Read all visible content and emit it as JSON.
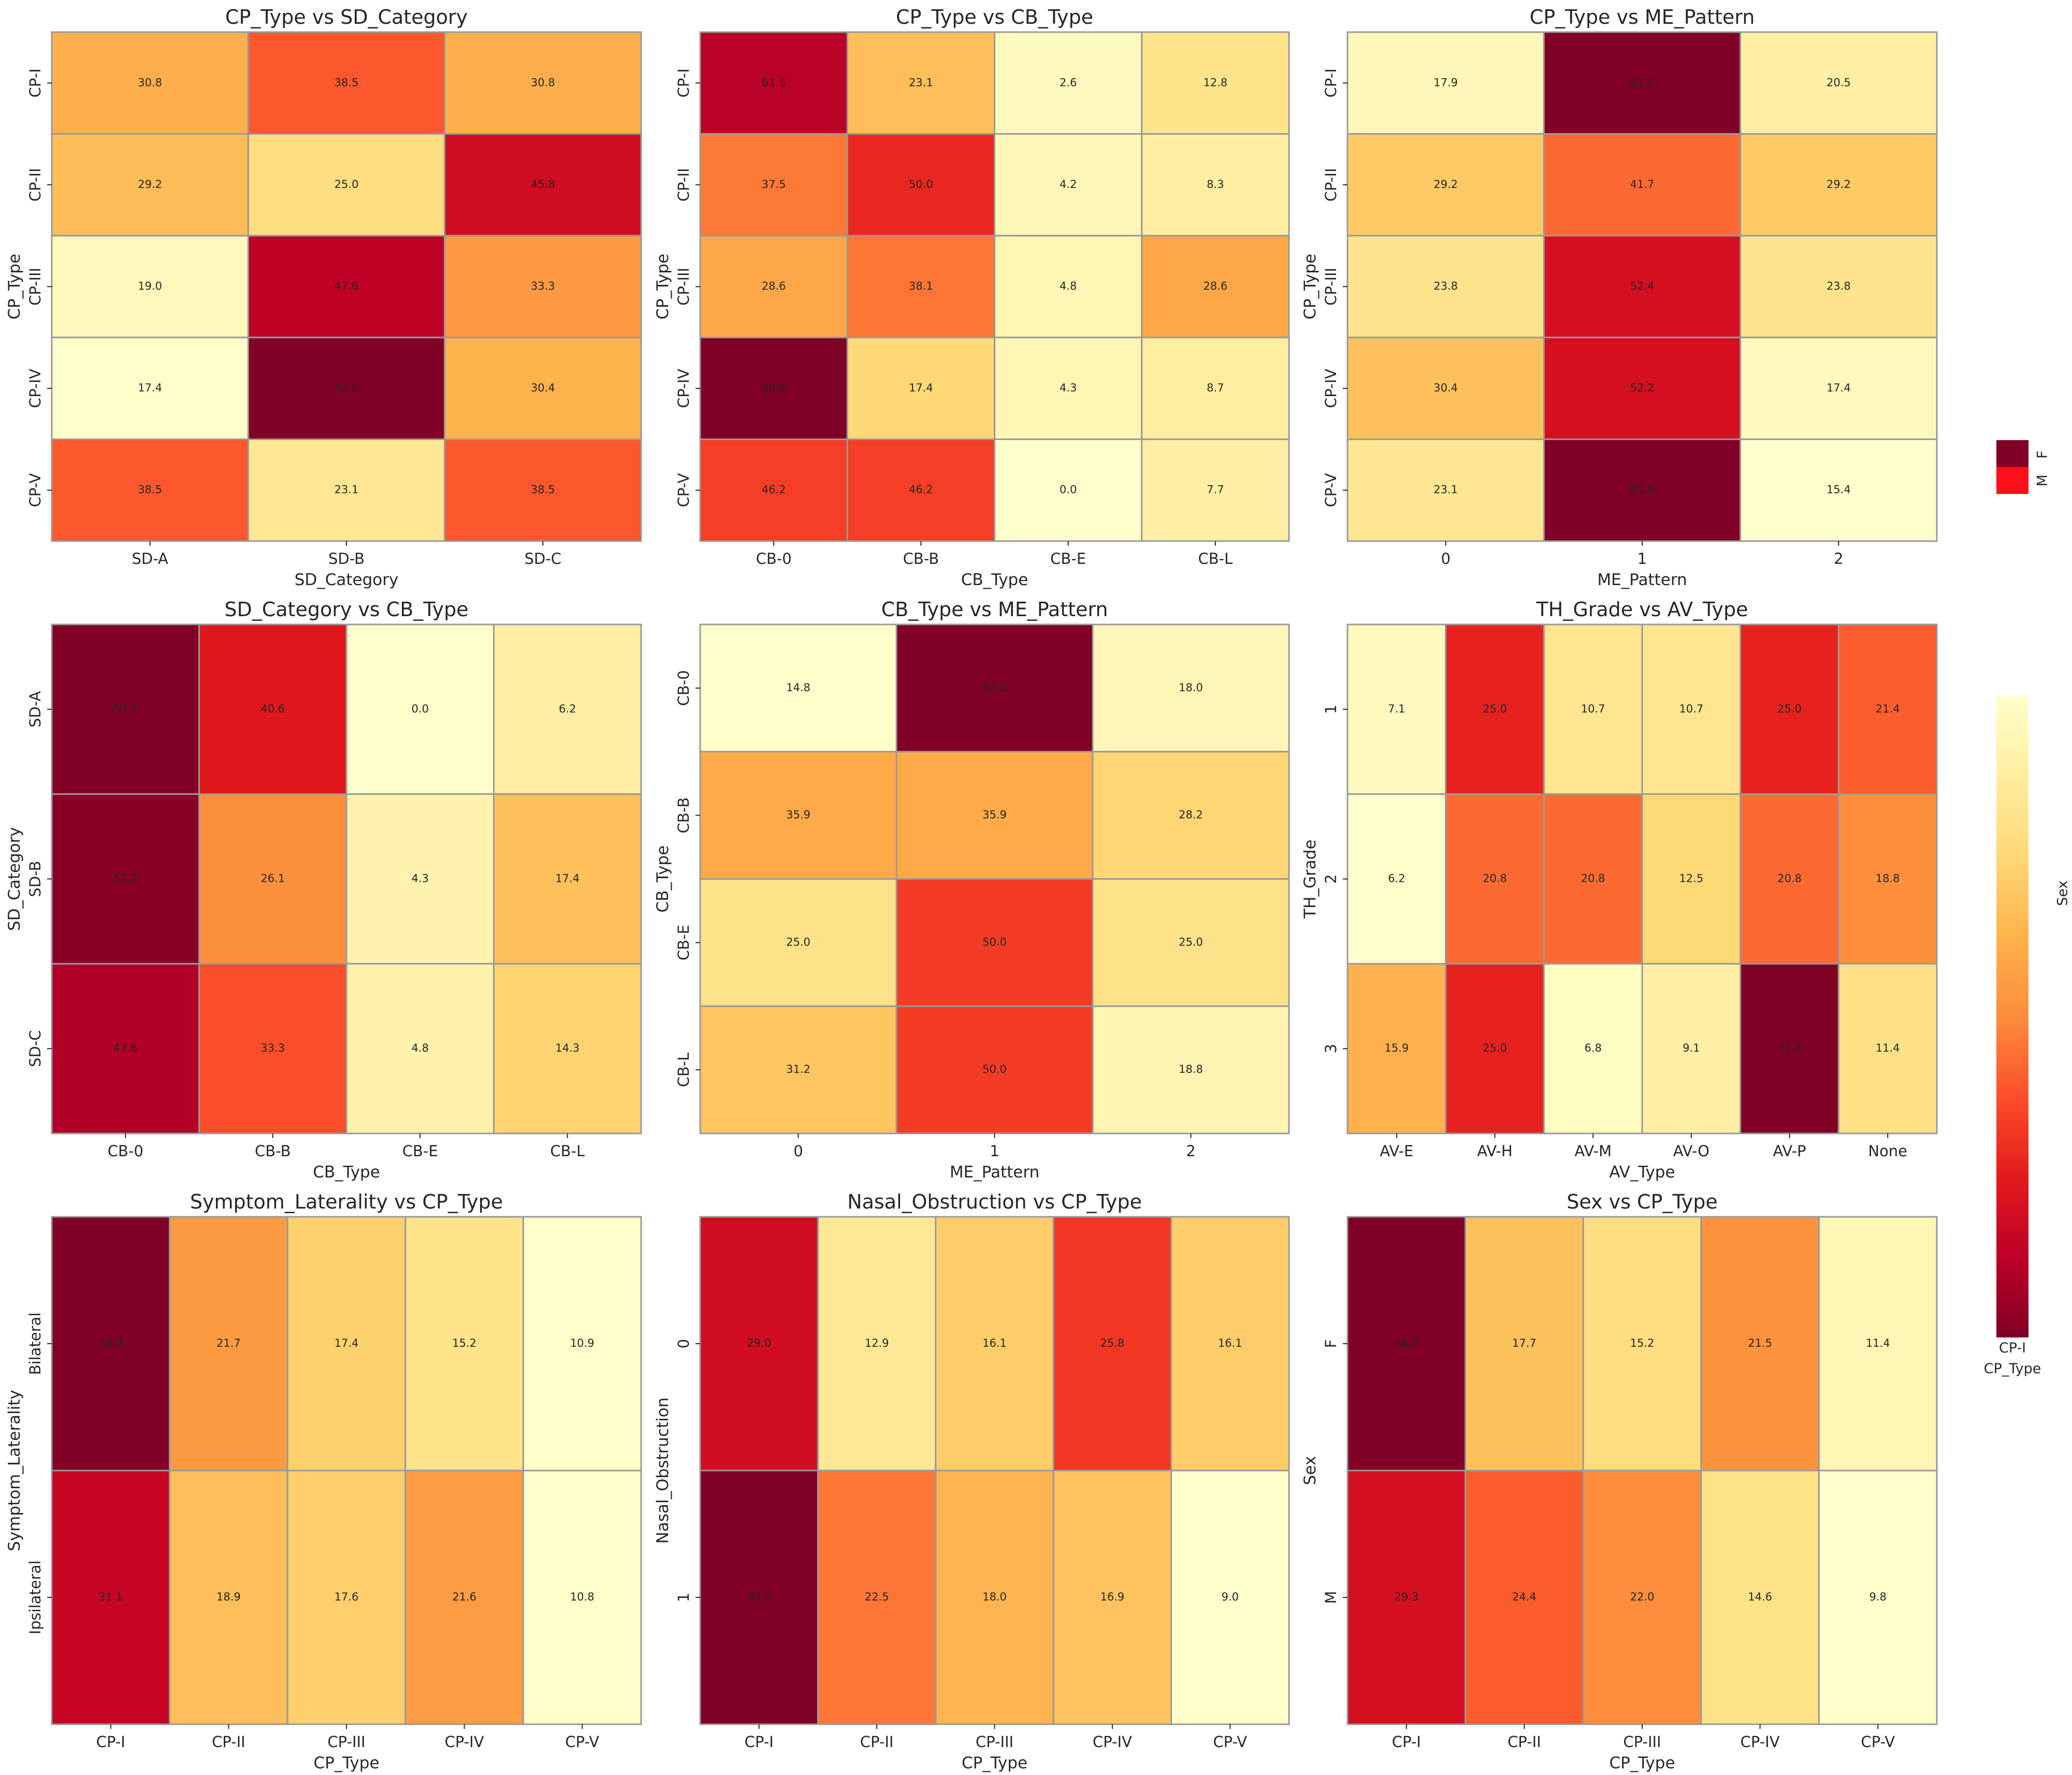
{
  "colors": {
    "scale": [
      "#ffffcc",
      "#ffeda0",
      "#fed976",
      "#feb24c",
      "#fd8d3c",
      "#fc4e2a",
      "#e31a1c",
      "#bd0026",
      "#800026"
    ],
    "cell_border": "#999999",
    "text": "#262626"
  },
  "chart_data": [
    {
      "type": "heatmap",
      "title": "CP_Type vs SD_Category",
      "xlabel": "SD_Category",
      "ylabel": "CP_Type",
      "x_categories": [
        "SD-A",
        "SD-B",
        "SD-C"
      ],
      "y_categories": [
        "CP-I",
        "CP-II",
        "CP-III",
        "CP-IV",
        "CP-V"
      ],
      "values": [
        [
          30.8,
          38.5,
          30.8
        ],
        [
          29.2,
          25.0,
          45.8
        ],
        [
          19.0,
          47.6,
          33.3
        ],
        [
          17.4,
          52.2,
          30.4
        ],
        [
          38.5,
          23.1,
          38.5
        ]
      ]
    },
    {
      "type": "heatmap",
      "title": "CP_Type vs CB_Type",
      "xlabel": "CB_Type",
      "ylabel": "CP_Type",
      "x_categories": [
        "CB-0",
        "CB-B",
        "CB-E",
        "CB-L"
      ],
      "y_categories": [
        "CP-I",
        "CP-II",
        "CP-III",
        "CP-IV",
        "CP-V"
      ],
      "values": [
        [
          61.5,
          23.1,
          2.6,
          12.8
        ],
        [
          37.5,
          50.0,
          4.2,
          8.3
        ],
        [
          28.6,
          38.1,
          4.8,
          28.6
        ],
        [
          69.6,
          17.4,
          4.3,
          8.7
        ],
        [
          46.2,
          46.2,
          0.0,
          7.7
        ]
      ]
    },
    {
      "type": "heatmap",
      "title": "CP_Type vs ME_Pattern",
      "xlabel": "ME_Pattern",
      "ylabel": "CP_Type",
      "x_categories": [
        "0",
        "1",
        "2"
      ],
      "y_categories": [
        "CP-I",
        "CP-II",
        "CP-III",
        "CP-IV",
        "CP-V"
      ],
      "values": [
        [
          17.9,
          61.5,
          20.5
        ],
        [
          29.2,
          41.7,
          29.2
        ],
        [
          23.8,
          52.4,
          23.8
        ],
        [
          30.4,
          52.2,
          17.4
        ],
        [
          23.1,
          61.5,
          15.4
        ]
      ]
    },
    {
      "type": "heatmap",
      "title": "SD_Category vs CB_Type",
      "xlabel": "CB_Type",
      "ylabel": "SD_Category",
      "x_categories": [
        "CB-0",
        "CB-B",
        "CB-E",
        "CB-L"
      ],
      "y_categories": [
        "SD-A",
        "SD-B",
        "SD-C"
      ],
      "values": [
        [
          53.1,
          40.6,
          0.0,
          6.2
        ],
        [
          52.2,
          26.1,
          4.3,
          17.4
        ],
        [
          47.6,
          33.3,
          4.8,
          14.3
        ]
      ]
    },
    {
      "type": "heatmap",
      "title": "CB_Type vs ME_Pattern",
      "xlabel": "ME_Pattern",
      "ylabel": "CB_Type",
      "x_categories": [
        "0",
        "1",
        "2"
      ],
      "y_categories": [
        "CB-0",
        "CB-B",
        "CB-E",
        "CB-L"
      ],
      "values": [
        [
          14.8,
          67.2,
          18.0
        ],
        [
          35.9,
          35.9,
          28.2
        ],
        [
          25.0,
          50.0,
          25.0
        ],
        [
          31.2,
          50.0,
          18.8
        ]
      ]
    },
    {
      "type": "heatmap",
      "title": "TH_Grade vs AV_Type",
      "xlabel": "AV_Type",
      "ylabel": "TH_Grade",
      "x_categories": [
        "AV-E",
        "AV-H",
        "AV-M",
        "AV-O",
        "AV-P",
        "None"
      ],
      "y_categories": [
        "1",
        "2",
        "3"
      ],
      "values": [
        [
          7.1,
          25.0,
          10.7,
          10.7,
          25.0,
          21.4
        ],
        [
          6.2,
          20.8,
          20.8,
          12.5,
          20.8,
          18.8
        ],
        [
          15.9,
          25.0,
          6.8,
          9.1,
          31.8,
          11.4
        ]
      ]
    },
    {
      "type": "heatmap",
      "title": "Symptom_Laterality vs CP_Type",
      "xlabel": "CP_Type",
      "ylabel": "Symptom_Laterality",
      "x_categories": [
        "CP-I",
        "CP-II",
        "CP-III",
        "CP-IV",
        "CP-V"
      ],
      "y_categories": [
        "Bilateral",
        "Ipsilateral"
      ],
      "values": [
        [
          34.8,
          21.7,
          17.4,
          15.2,
          10.9
        ],
        [
          31.1,
          18.9,
          17.6,
          21.6,
          10.8
        ]
      ]
    },
    {
      "type": "heatmap",
      "title": "Nasal_Obstruction vs CP_Type",
      "xlabel": "CP_Type",
      "ylabel": "Nasal_Obstruction",
      "x_categories": [
        "CP-I",
        "CP-II",
        "CP-III",
        "CP-IV",
        "CP-V"
      ],
      "y_categories": [
        "0",
        "1"
      ],
      "values": [
        [
          29.0,
          12.9,
          16.1,
          25.8,
          16.1
        ],
        [
          33.7,
          22.5,
          18.0,
          16.9,
          9.0
        ]
      ]
    },
    {
      "type": "heatmap",
      "title": "Sex vs CP_Type",
      "xlabel": "CP_Type",
      "ylabel": "Sex",
      "x_categories": [
        "CP-I",
        "CP-II",
        "CP-III",
        "CP-IV",
        "CP-V"
      ],
      "y_categories": [
        "F",
        "M"
      ],
      "values": [
        [
          34.2,
          17.7,
          15.2,
          21.5,
          11.4
        ],
        [
          29.3,
          24.4,
          22.0,
          14.6,
          9.8
        ]
      ]
    }
  ],
  "legends": {
    "small": {
      "labels": [
        "F",
        "M"
      ]
    },
    "colorbar": {
      "label": "Sex",
      "bottom_labels": [
        "CP-I",
        "CP_Type"
      ]
    }
  }
}
